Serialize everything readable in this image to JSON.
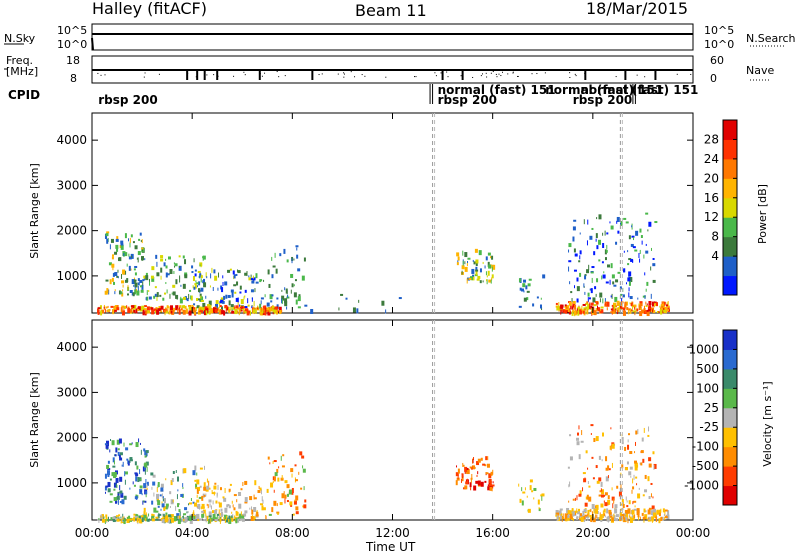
{
  "header": {
    "title": "Halley (fitACF)",
    "beam": "Beam 11",
    "date": "18/Mar/2015"
  },
  "top_panels": {
    "nsky_label": "N.Sky",
    "nsearch_label": "N.Search",
    "nsky_ticks": [
      "10^5",
      "10^0"
    ],
    "nsearch_ticks": [
      "10^5",
      "10^0"
    ],
    "freq_label_1": "Freq.",
    "freq_label_2": "[MHz]",
    "freq_ticks": [
      "18",
      "8"
    ],
    "nave_label": "Nave",
    "nave_ticks": [
      "60",
      "0"
    ],
    "cpid_label": "CPID",
    "cpid_entries": [
      {
        "text": "rbsp 200",
        "hour": 0.25,
        "row": 1
      },
      {
        "text": "normal (fast) 151",
        "hour": 13.8,
        "row": 0
      },
      {
        "text": "rbsp 200",
        "hour": 13.8,
        "row": 1
      },
      {
        "text": "normal (fast) 151",
        "hour": 18.1,
        "row": 0
      },
      {
        "text": "rbsp 200",
        "hour": 19.2,
        "row": 1
      },
      {
        "text": "normal (fast) 151",
        "hour": 19.5,
        "row": 0
      }
    ]
  },
  "colorbars": {
    "power": {
      "label": "Power [dB]",
      "ticks": [
        "28",
        "24",
        "20",
        "16",
        "12",
        "8",
        "4"
      ],
      "colors": [
        "#0018ff",
        "#1e5fc8",
        "#3c7a3c",
        "#4ab84a",
        "#d8d800",
        "#ffb400",
        "#ff7800",
        "#ff3200",
        "#e00000"
      ]
    },
    "velocity": {
      "label": "Velocity [m s⁻¹]",
      "ticks": [
        "1000",
        "500",
        "100",
        "25",
        "-25",
        "-100",
        "-500",
        "-1000"
      ],
      "colors": [
        "#1830c8",
        "#2a6ad0",
        "#3a8a6a",
        "#5ab84a",
        "#b4b4b4",
        "#ffc000",
        "#ff8c00",
        "#ff3c00",
        "#e00000"
      ]
    }
  },
  "chart_data": {
    "type": "heatmap",
    "xlabel": "Time UT",
    "ylabel": "Slant Range [km]",
    "x_ticks": [
      "00:00",
      "04:00",
      "08:00",
      "12:00",
      "16:00",
      "20:00",
      "00:00"
    ],
    "y_ticks": [
      "1000",
      "2000",
      "3000",
      "4000"
    ],
    "xlim_hours": [
      0,
      24
    ],
    "ylim_km": [
      180,
      4600
    ],
    "dashed_lines_hours": [
      13.6,
      21.1
    ],
    "power_clusters": [
      {
        "t0": 0.5,
        "t1": 2.0,
        "r0": 600,
        "r1": 2000,
        "n": 110,
        "c": [
          1,
          2,
          3,
          5
        ]
      },
      {
        "t0": 2.0,
        "t1": 4.5,
        "r0": 500,
        "r1": 1500,
        "n": 100,
        "c": [
          1,
          2,
          3,
          4
        ]
      },
      {
        "t0": 4.0,
        "t1": 6.5,
        "r0": 300,
        "r1": 1200,
        "n": 110,
        "c": [
          0,
          1,
          2,
          4
        ]
      },
      {
        "t0": 6.5,
        "t1": 8.5,
        "r0": 300,
        "r1": 1700,
        "n": 60,
        "c": [
          1,
          2,
          3
        ]
      },
      {
        "t0": 0.2,
        "t1": 7.5,
        "r0": 230,
        "r1": 360,
        "n": 260,
        "c": [
          5,
          6,
          7,
          8,
          4
        ]
      },
      {
        "t0": 8.5,
        "t1": 13.2,
        "r0": 250,
        "r1": 700,
        "n": 10,
        "c": [
          1,
          2
        ]
      },
      {
        "t0": 14.5,
        "t1": 16.0,
        "r0": 900,
        "r1": 1600,
        "n": 60,
        "c": [
          1,
          2,
          3,
          4,
          5
        ]
      },
      {
        "t0": 17.0,
        "t1": 18.0,
        "r0": 300,
        "r1": 1100,
        "n": 20,
        "c": [
          1,
          2,
          3
        ]
      },
      {
        "t0": 19.0,
        "t1": 22.5,
        "r0": 500,
        "r1": 2400,
        "n": 150,
        "c": [
          0,
          1,
          2,
          3
        ]
      },
      {
        "t0": 18.5,
        "t1": 23.0,
        "r0": 220,
        "r1": 450,
        "n": 220,
        "c": [
          5,
          6,
          7,
          8,
          4
        ]
      }
    ],
    "velocity_clusters": [
      {
        "t0": 0.5,
        "t1": 2.2,
        "r0": 600,
        "r1": 2000,
        "n": 120,
        "c": [
          0,
          1,
          2,
          3
        ]
      },
      {
        "t0": 2.0,
        "t1": 4.5,
        "r0": 300,
        "r1": 1400,
        "n": 100,
        "c": [
          1,
          2,
          3,
          4,
          5
        ]
      },
      {
        "t0": 4.0,
        "t1": 7.0,
        "r0": 250,
        "r1": 1100,
        "n": 120,
        "c": [
          4,
          5,
          6
        ]
      },
      {
        "t0": 7.0,
        "t1": 8.5,
        "r0": 300,
        "r1": 1700,
        "n": 60,
        "c": [
          3,
          5,
          6,
          7
        ]
      },
      {
        "t0": 0.2,
        "t1": 6.0,
        "r0": 200,
        "r1": 320,
        "n": 200,
        "c": [
          2,
          3,
          4,
          5
        ]
      },
      {
        "t0": 14.5,
        "t1": 16.0,
        "r0": 900,
        "r1": 1600,
        "n": 70,
        "c": [
          6,
          7,
          8
        ]
      },
      {
        "t0": 17.0,
        "t1": 18.0,
        "r0": 300,
        "r1": 1100,
        "n": 20,
        "c": [
          3,
          5
        ]
      },
      {
        "t0": 19.0,
        "t1": 22.5,
        "r0": 500,
        "r1": 2300,
        "n": 150,
        "c": [
          4,
          5,
          6,
          7
        ]
      },
      {
        "t0": 18.5,
        "t1": 23.0,
        "r0": 220,
        "r1": 450,
        "n": 220,
        "c": [
          4,
          5,
          6
        ]
      }
    ]
  }
}
